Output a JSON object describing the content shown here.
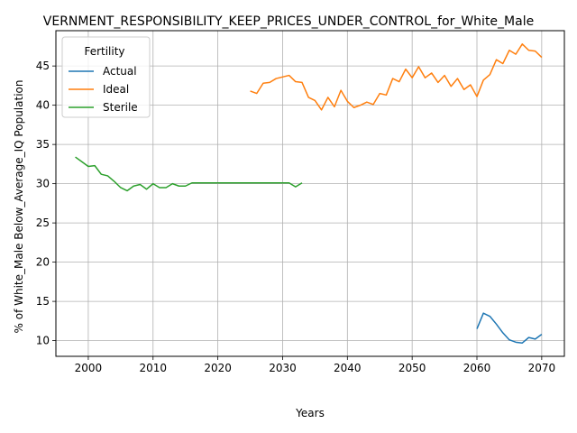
{
  "chart_data": {
    "type": "line",
    "title": "VERNMENT_RESPONSIBILITY_KEEP_PRICES_UNDER_CONTROL_for_White_Male",
    "xlabel": "Years",
    "ylabel": "% of White_Male Below_Average_IQ Population",
    "xlim": [
      1995,
      2073.5
    ],
    "ylim": [
      8,
      49.5
    ],
    "xticks": [
      2000,
      2010,
      2020,
      2030,
      2040,
      2050,
      2060,
      2070
    ],
    "yticks": [
      10,
      15,
      20,
      25,
      30,
      35,
      40,
      45
    ],
    "grid": true,
    "legend": {
      "title": "Fertility",
      "placement": "upper-left"
    },
    "series": [
      {
        "name": "Actual",
        "color": "#1f77b4",
        "x": [
          2060,
          2061,
          2062,
          2063,
          2064,
          2065,
          2066,
          2067,
          2068,
          2069,
          2070
        ],
        "y": [
          11.5,
          13.5,
          13.1,
          12.1,
          11.0,
          10.1,
          9.8,
          9.7,
          10.4,
          10.2,
          10.8
        ]
      },
      {
        "name": "Ideal",
        "color": "#ff7f0e",
        "x": [
          2025,
          2026,
          2027,
          2028,
          2029,
          2030,
          2031,
          2032,
          2033,
          2034,
          2035,
          2036,
          2037,
          2038,
          2039,
          2040,
          2041,
          2042,
          2043,
          2044,
          2045,
          2046,
          2047,
          2048,
          2049,
          2050,
          2051,
          2052,
          2053,
          2054,
          2055,
          2056,
          2057,
          2058,
          2059,
          2060,
          2061,
          2062,
          2063,
          2064,
          2065,
          2066,
          2067,
          2068,
          2069,
          2070
        ],
        "y": [
          41.8,
          41.5,
          42.8,
          42.9,
          43.4,
          43.6,
          43.8,
          43.0,
          42.9,
          41.0,
          40.6,
          39.4,
          41.0,
          39.8,
          41.9,
          40.5,
          39.7,
          40.0,
          40.4,
          40.1,
          41.5,
          41.3,
          43.4,
          43.0,
          44.6,
          43.5,
          44.9,
          43.5,
          44.1,
          42.9,
          43.8,
          42.4,
          43.4,
          42.0,
          42.6,
          41.1,
          43.2,
          43.9,
          45.8,
          45.3,
          47.0,
          46.5,
          47.8,
          47.0,
          46.9,
          46.1
        ]
      },
      {
        "name": "Sterile",
        "color": "#2ca02c",
        "x": [
          1998,
          1999,
          2000,
          2001,
          2002,
          2003,
          2004,
          2005,
          2006,
          2007,
          2008,
          2009,
          2010,
          2011,
          2012,
          2013,
          2014,
          2015,
          2016,
          2017,
          2018,
          2019,
          2020,
          2021,
          2022,
          2023,
          2024,
          2025,
          2026,
          2027,
          2028,
          2029,
          2030,
          2031,
          2032,
          2033
        ],
        "y": [
          33.4,
          32.8,
          32.2,
          32.3,
          31.2,
          31.0,
          30.3,
          29.5,
          29.1,
          29.7,
          29.9,
          29.3,
          30.0,
          29.5,
          29.5,
          30.0,
          29.7,
          29.7,
          30.1,
          30.1,
          30.1,
          30.1,
          30.1,
          30.1,
          30.1,
          30.1,
          30.1,
          30.1,
          30.1,
          30.1,
          30.1,
          30.1,
          30.1,
          30.1,
          29.6,
          30.1
        ]
      }
    ]
  }
}
